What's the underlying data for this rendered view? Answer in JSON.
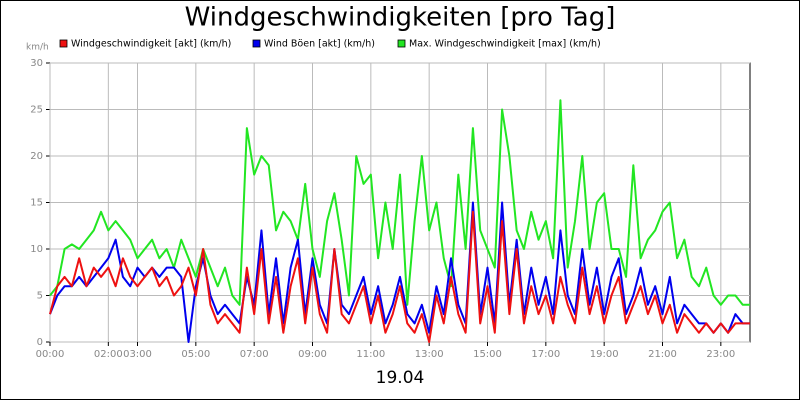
{
  "chart_data": {
    "type": "line",
    "title": "Windgeschwindigkeiten [pro Tag]",
    "y_label": "km/h",
    "x_label": "19.04",
    "xlim": [
      0,
      24
    ],
    "xticks": [
      {
        "value": 0,
        "label": "00:00"
      },
      {
        "value": 2,
        "label": "02:00"
      },
      {
        "value": 3,
        "label": "03:00"
      },
      {
        "value": 5,
        "label": "05:00"
      },
      {
        "value": 7,
        "label": "07:00"
      },
      {
        "value": 9,
        "label": "09:00"
      },
      {
        "value": 11,
        "label": "11:00"
      },
      {
        "value": 13,
        "label": "13:00"
      },
      {
        "value": 15,
        "label": "15:00"
      },
      {
        "value": 17,
        "label": "17:00"
      },
      {
        "value": 19,
        "label": "19:00"
      },
      {
        "value": 21,
        "label": "21:00"
      },
      {
        "value": 23,
        "label": "23:00"
      }
    ],
    "ylim": [
      0,
      30
    ],
    "yticks": [
      0,
      5,
      10,
      15,
      20,
      25,
      30
    ],
    "grid": true,
    "x": [
      0,
      0.25,
      0.5,
      0.75,
      1,
      1.25,
      1.5,
      1.75,
      2,
      2.25,
      2.5,
      2.75,
      3,
      3.25,
      3.5,
      3.75,
      4,
      4.25,
      4.5,
      4.75,
      5,
      5.25,
      5.5,
      5.75,
      6,
      6.25,
      6.5,
      6.75,
      7,
      7.25,
      7.5,
      7.75,
      8,
      8.25,
      8.5,
      8.75,
      9,
      9.25,
      9.5,
      9.75,
      10,
      10.25,
      10.5,
      10.75,
      11,
      11.25,
      11.5,
      11.75,
      12,
      12.25,
      12.5,
      12.75,
      13,
      13.25,
      13.5,
      13.75,
      14,
      14.25,
      14.5,
      14.75,
      15,
      15.25,
      15.5,
      15.75,
      16,
      16.25,
      16.5,
      16.75,
      17,
      17.25,
      17.5,
      17.75,
      18,
      18.25,
      18.5,
      18.75,
      19,
      19.25,
      19.5,
      19.75,
      20,
      20.25,
      20.5,
      20.75,
      21,
      21.25,
      21.5,
      21.75,
      22,
      22.25,
      22.5,
      22.75,
      23,
      23.25,
      23.5,
      23.75,
      24
    ],
    "series": [
      {
        "name": "Max. Windgeschwindigkeit [max] (km/h)",
        "color": "#22e622",
        "legend_color": "#22e622",
        "values": [
          5,
          6,
          10,
          10.5,
          10,
          11,
          12,
          14,
          12,
          13,
          12,
          11,
          9,
          10,
          11,
          9,
          10,
          8,
          11,
          9,
          7,
          10,
          8,
          6,
          8,
          5,
          4,
          23,
          18,
          20,
          19,
          12,
          14,
          13,
          11,
          17,
          10,
          7,
          13,
          16,
          11,
          5,
          20,
          17,
          18,
          9,
          15,
          10,
          18,
          4,
          13,
          20,
          12,
          15,
          9,
          6,
          18,
          10,
          23,
          12,
          10,
          8,
          25,
          20,
          12,
          10,
          14,
          11,
          13,
          9,
          26,
          8,
          13,
          20,
          10,
          15,
          16,
          10,
          10,
          7,
          19,
          9,
          11,
          12,
          14,
          15,
          9,
          11,
          7,
          6,
          8,
          5,
          4,
          5,
          5,
          4,
          4
        ]
      },
      {
        "name": "Wind Böen [akt] (km/h)",
        "color": "#0000ee",
        "values": [
          3,
          5,
          6,
          6,
          7,
          6,
          7,
          8,
          9,
          11,
          7,
          6,
          8,
          7,
          8,
          7,
          8,
          8,
          7,
          0,
          6,
          9,
          5,
          3,
          4,
          3,
          2,
          7,
          4,
          12,
          3,
          9,
          2,
          8,
          11,
          3,
          9,
          4,
          2,
          10,
          4,
          3,
          5,
          7,
          3,
          6,
          2,
          4,
          7,
          3,
          2,
          4,
          1,
          6,
          3,
          9,
          4,
          2,
          15,
          3,
          8,
          2,
          15,
          4,
          11,
          3,
          8,
          4,
          7,
          3,
          12,
          5,
          3,
          10,
          4,
          8,
          3,
          7,
          9,
          3,
          5,
          8,
          4,
          6,
          3,
          7,
          2,
          4,
          3,
          2,
          2,
          1,
          2,
          1,
          3,
          2,
          2
        ]
      },
      {
        "name": "Windgeschwindigkeit [akt] (km/h)",
        "color": "#ee1111",
        "values": [
          3,
          6,
          7,
          6,
          9,
          6,
          8,
          7,
          8,
          6,
          9,
          7,
          6,
          7,
          8,
          6,
          7,
          5,
          6,
          8,
          5,
          10,
          4,
          2,
          3,
          2,
          1,
          8,
          3,
          10,
          2,
          7,
          1,
          6,
          9,
          2,
          8,
          3,
          1,
          10,
          3,
          2,
          4,
          6,
          2,
          5,
          1,
          3,
          6,
          2,
          1,
          3,
          0,
          5,
          2,
          7,
          3,
          1,
          14,
          2,
          6,
          1,
          13,
          3,
          10,
          2,
          6,
          3,
          5,
          2,
          7,
          4,
          2,
          8,
          3,
          6,
          2,
          5,
          7,
          2,
          4,
          6,
          3,
          5,
          2,
          4,
          1,
          3,
          2,
          1,
          2,
          1,
          2,
          1,
          2,
          2,
          2
        ]
      }
    ]
  }
}
